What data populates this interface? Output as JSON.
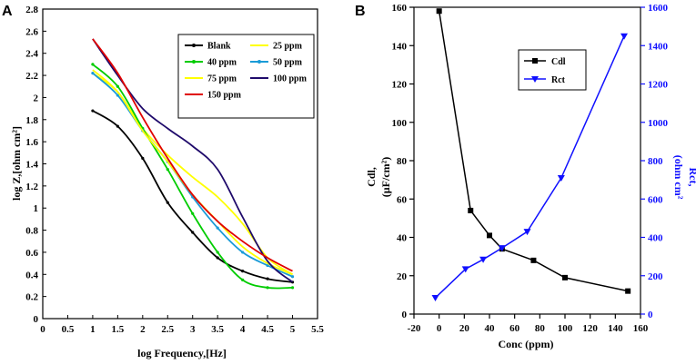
{
  "chart_data": [
    {
      "type": "line",
      "panel_label": "A",
      "xlabel": "log Frequency,[Hz]",
      "ylabel": "log Z,[ohm cm²]",
      "xlim": [
        0,
        5.5
      ],
      "ylim": [
        0,
        2.8
      ],
      "x_ticks": [
        "0",
        "0.5",
        "1",
        "1.5",
        "2",
        "2.5",
        "3",
        "3.5",
        "4",
        "4.5",
        "5",
        "5.5"
      ],
      "y_ticks": [
        "0",
        "0.2",
        "0.4",
        "0.6",
        "0.8",
        "1",
        "1.2",
        "1.4",
        "1.6",
        "1.8",
        "2",
        "2.2",
        "2.4",
        "2.6",
        "2.8"
      ],
      "series": [
        {
          "name": "Blank",
          "color": "#000000",
          "marker": "dot",
          "x": [
            1,
            1.5,
            2,
            2.5,
            3,
            3.5,
            4,
            4.5,
            5
          ],
          "y": [
            1.88,
            1.74,
            1.45,
            1.05,
            0.78,
            0.55,
            0.43,
            0.36,
            0.33
          ]
        },
        {
          "name": "25 ppm",
          "color": "#ffff00",
          "marker": "none",
          "x": [
            1,
            1.5,
            2,
            2.5,
            3,
            3.5,
            4,
            4.5,
            5
          ],
          "y": [
            2.22,
            2.05,
            1.72,
            1.48,
            1.28,
            1.1,
            0.86,
            0.55,
            0.4
          ]
        },
        {
          "name": "40 ppm",
          "color": "#00cc00",
          "marker": "dot",
          "x": [
            1,
            1.5,
            2,
            2.5,
            3,
            3.5,
            4,
            4.5,
            5
          ],
          "y": [
            2.3,
            2.1,
            1.72,
            1.35,
            0.95,
            0.6,
            0.35,
            0.28,
            0.28
          ]
        },
        {
          "name": "50 ppm",
          "color": "#1a9bd7",
          "marker": "dot",
          "x": [
            1,
            1.5,
            2,
            2.5,
            3,
            3.5,
            4,
            4.5,
            5
          ],
          "y": [
            2.22,
            2.02,
            1.7,
            1.42,
            1.1,
            0.82,
            0.6,
            0.48,
            0.38
          ]
        },
        {
          "name": "75 ppm",
          "color": "#ffff00",
          "marker": "none",
          "x": [
            1,
            1.5,
            2,
            2.5,
            3,
            3.5,
            4,
            4.5,
            5
          ],
          "y": [
            2.25,
            2.05,
            1.7,
            1.42,
            1.12,
            0.88,
            0.65,
            0.5,
            0.4
          ]
        },
        {
          "name": "100 ppm",
          "color": "#1f0a6b",
          "marker": "none",
          "x": [
            1,
            1.5,
            2,
            2.5,
            3,
            3.5,
            4,
            4.5,
            5
          ],
          "y": [
            2.53,
            2.2,
            1.9,
            1.72,
            1.56,
            1.35,
            0.92,
            0.52,
            0.33
          ]
        },
        {
          "name": "150 ppm",
          "color": "#e00000",
          "marker": "none",
          "x": [
            1,
            1.5,
            2,
            2.5,
            3,
            3.5,
            4,
            4.5,
            5
          ],
          "y": [
            2.53,
            2.22,
            1.82,
            1.45,
            1.12,
            0.88,
            0.7,
            0.55,
            0.43
          ]
        }
      ]
    },
    {
      "type": "line",
      "panel_label": "B",
      "xlabel": "Conc (ppm)",
      "xlim": [
        -20,
        160
      ],
      "x_ticks": [
        "-20",
        "0",
        "20",
        "40",
        "60",
        "80",
        "100",
        "120",
        "140",
        "160"
      ],
      "y_left": {
        "label_line1": "Cdl,",
        "label_line2": "(µF/cm²)",
        "lim": [
          0,
          160
        ],
        "ticks": [
          "0",
          "20",
          "40",
          "60",
          "80",
          "100",
          "120",
          "140",
          "160"
        ]
      },
      "y_right": {
        "label_line1": "Rct,",
        "label_line2": "(ohm cm²",
        "lim": [
          0,
          1600
        ],
        "ticks": [
          "0",
          "200",
          "400",
          "600",
          "800",
          "1000",
          "1200",
          "1400",
          "1600"
        ]
      },
      "series": [
        {
          "name": "Cdl",
          "color": "#000000",
          "marker": "square",
          "axis": "left",
          "x": [
            0,
            25,
            40,
            50,
            75,
            100,
            150
          ],
          "y": [
            158,
            54,
            41,
            34,
            28,
            19,
            12
          ]
        },
        {
          "name": "Rct",
          "color": "#1010ff",
          "marker": "triangle-down",
          "axis": "right",
          "x": [
            -3,
            21,
            35,
            50,
            70,
            97,
            147
          ],
          "y": [
            85,
            235,
            285,
            345,
            430,
            710,
            1450
          ]
        }
      ]
    }
  ]
}
